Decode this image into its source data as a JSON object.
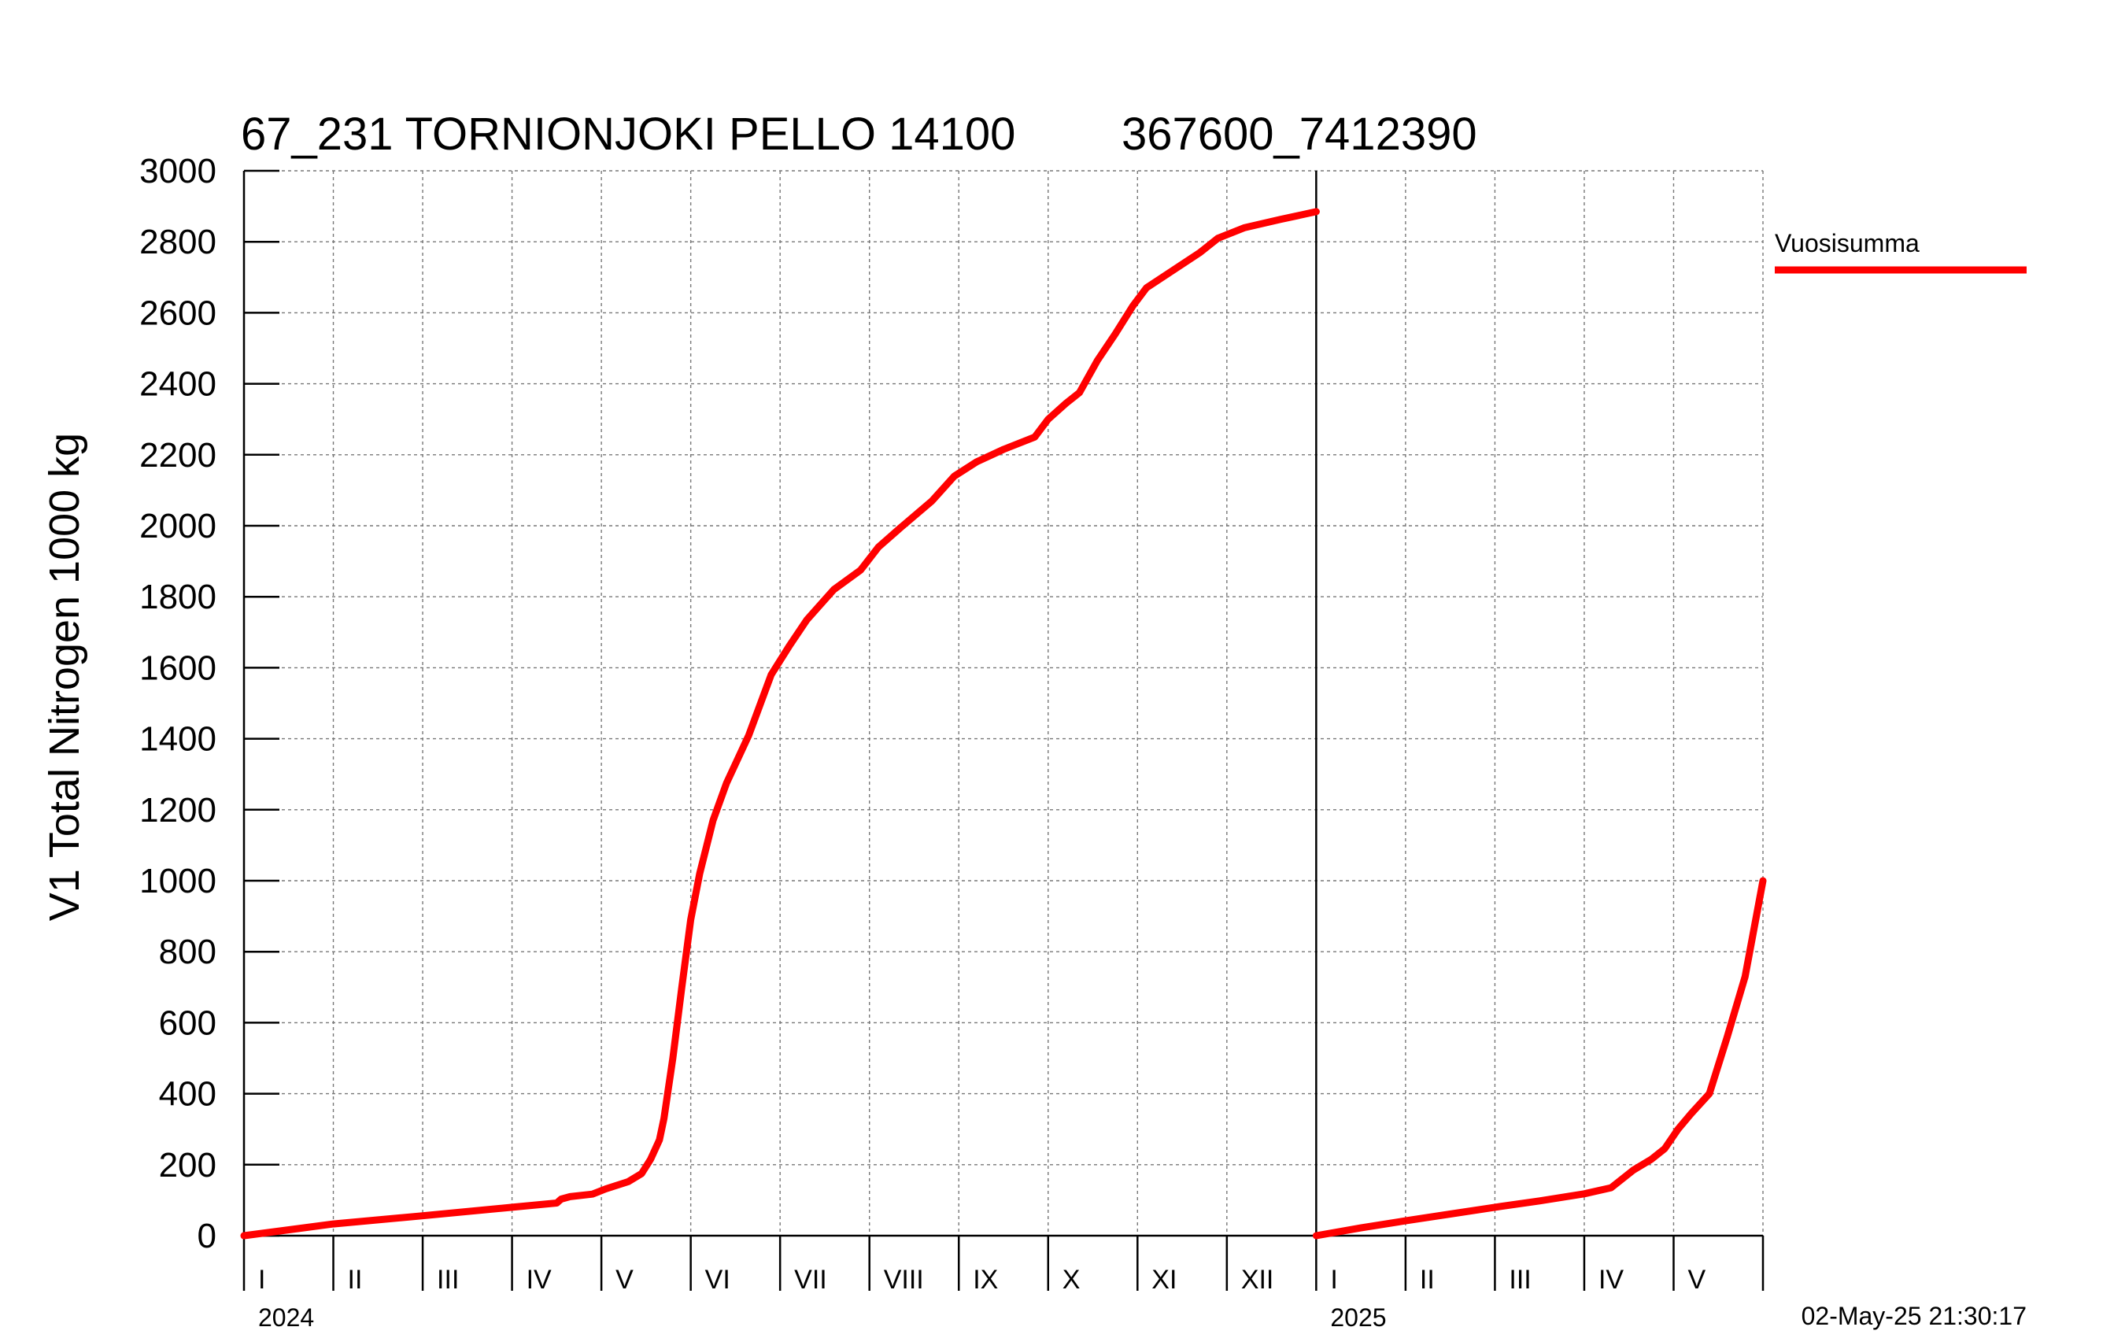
{
  "chart_data": {
    "type": "line",
    "title": "67_231 TORNIONJOKI PELLO 14100",
    "subtitle": "367600_7412390",
    "ylabel": "V1 Total Nitrogen 1000 kg",
    "xlabel": "",
    "ylim": [
      0,
      3000
    ],
    "yticks": [
      0,
      200,
      400,
      600,
      800,
      1000,
      1200,
      1400,
      1600,
      1800,
      2000,
      2200,
      2400,
      2600,
      2800,
      3000
    ],
    "grid": true,
    "x_unit": "month index from Jan 2024 (0 = start of January 2024)",
    "xlim": [
      0,
      17
    ],
    "month_labels": [
      "I",
      "II",
      "III",
      "IV",
      "V",
      "VI",
      "VII",
      "VIII",
      "IX",
      "X",
      "XI",
      "XII",
      "I",
      "II",
      "III",
      "IV",
      "V"
    ],
    "year_labels": [
      {
        "label": "2024",
        "month_index": 0
      },
      {
        "label": "2025",
        "month_index": 12
      }
    ],
    "legend": {
      "position": "right",
      "entries": [
        "Vuosisumma"
      ]
    },
    "timestamp": "02-May-25 21:30:17",
    "colors": {
      "series": "#ff0000",
      "grid": "#777777",
      "axis": "#000000"
    },
    "series": [
      {
        "name": "Vuosisumma",
        "segments": [
          [
            [
              0,
              0
            ],
            [
              1,
              33
            ],
            [
              2,
              56
            ],
            [
              3,
              80
            ],
            [
              3.5,
              92
            ],
            [
              3.55,
              103
            ],
            [
              3.65,
              110
            ],
            [
              3.9,
              117
            ],
            [
              4.05,
              132
            ],
            [
              4.3,
              152
            ],
            [
              4.45,
              175
            ],
            [
              4.55,
              215
            ],
            [
              4.65,
              270
            ],
            [
              4.7,
              330
            ],
            [
              4.8,
              500
            ],
            [
              4.9,
              700
            ],
            [
              5.0,
              890
            ],
            [
              5.1,
              1020
            ],
            [
              5.25,
              1170
            ],
            [
              5.4,
              1275
            ],
            [
              5.65,
              1410
            ],
            [
              5.9,
              1580
            ],
            [
              6.1,
              1660
            ],
            [
              6.3,
              1735
            ],
            [
              6.6,
              1820
            ],
            [
              6.9,
              1875
            ],
            [
              7.1,
              1940
            ],
            [
              7.35,
              1995
            ],
            [
              7.7,
              2070
            ],
            [
              7.95,
              2140
            ],
            [
              8.2,
              2180
            ],
            [
              8.5,
              2215
            ],
            [
              8.85,
              2250
            ],
            [
              9.0,
              2300
            ],
            [
              9.2,
              2345
            ],
            [
              9.35,
              2375
            ],
            [
              9.55,
              2465
            ],
            [
              9.75,
              2540
            ],
            [
              9.95,
              2620
            ],
            [
              10.1,
              2670
            ],
            [
              10.4,
              2720
            ],
            [
              10.7,
              2770
            ],
            [
              10.9,
              2810
            ],
            [
              11.2,
              2840
            ],
            [
              11.6,
              2863
            ],
            [
              12,
              2885
            ]
          ],
          [
            [
              12,
              0
            ],
            [
              12.5,
              22
            ],
            [
              13,
              42
            ],
            [
              13.5,
              61
            ],
            [
              14,
              80
            ],
            [
              14.5,
              98
            ],
            [
              15,
              118
            ],
            [
              15.3,
              135
            ],
            [
              15.55,
              185
            ],
            [
              15.75,
              215
            ],
            [
              15.9,
              245
            ],
            [
              16.05,
              300
            ],
            [
              16.2,
              345
            ],
            [
              16.4,
              400
            ],
            [
              16.6,
              560
            ],
            [
              16.8,
              730
            ],
            [
              17,
              1000
            ]
          ]
        ]
      }
    ]
  }
}
